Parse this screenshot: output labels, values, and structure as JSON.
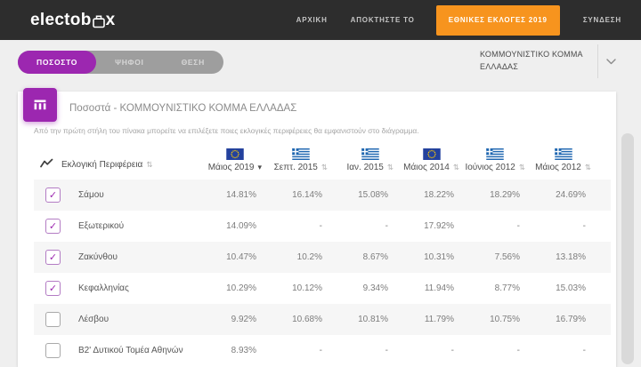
{
  "navbar": {
    "logo_prefix": "electob",
    "logo_suffix": "x",
    "links": [
      "ΑΡΧΙΚΗ",
      "ΑΠΟΚΤΗΣΤΕ ΤΟ"
    ],
    "cta": "ΕΘΝΙΚΕΣ ΕΚΛΟΓΕΣ 2019",
    "login": "ΣΥΝΔΕΣΗ"
  },
  "toolbar": {
    "tabs": [
      {
        "label": "ΠΟΣΟΣΤΟ",
        "active": true
      },
      {
        "label": "ΨΗΦΟΙ",
        "active": false
      },
      {
        "label": "ΘΕΣΗ",
        "active": false
      }
    ],
    "party_select": {
      "value": "ΚΟΜΜΟΥΝΙΣΤΙΚΟ ΚΟΜΜΑ ΕΛΛΑΔΑΣ"
    }
  },
  "card": {
    "title": "Ποσοστά - ΚΟΜΜΟΥΝΙΣΤΙΚΟ ΚΟΜΜΑ ΕΛΛΑΔΑΣ",
    "description": "Από την πρώτη στήλη του πίνακα μπορείτε να επιλέξετε ποιες εκλογικές περιφέρειες θα εμφανιστούν στο διάγραμμα."
  },
  "table": {
    "region_header": "Εκλογική Περιφέρεια",
    "columns": [
      {
        "label": "Μάιος 2019",
        "flag": "eu",
        "sorted": true
      },
      {
        "label": "Σεπτ. 2015",
        "flag": "gr",
        "sorted": false
      },
      {
        "label": "Ιαν. 2015",
        "flag": "gr",
        "sorted": false
      },
      {
        "label": "Μάιος 2014",
        "flag": "eu",
        "sorted": false
      },
      {
        "label": "Ιούνιος 2012",
        "flag": "gr",
        "sorted": false
      },
      {
        "label": "Μάιος 2012",
        "flag": "gr",
        "sorted": false
      }
    ],
    "rows": [
      {
        "region": "Σάμου",
        "checked": true,
        "values": [
          "14.81%",
          "16.14%",
          "15.08%",
          "18.22%",
          "18.29%",
          "24.69%"
        ]
      },
      {
        "region": "Εξωτερικού",
        "checked": true,
        "values": [
          "14.09%",
          "-",
          "-",
          "17.92%",
          "-",
          "-"
        ]
      },
      {
        "region": "Ζακύνθου",
        "checked": true,
        "values": [
          "10.47%",
          "10.2%",
          "8.67%",
          "10.31%",
          "7.56%",
          "13.18%"
        ]
      },
      {
        "region": "Κεφαλληνίας",
        "checked": true,
        "values": [
          "10.29%",
          "10.12%",
          "9.34%",
          "11.94%",
          "8.77%",
          "15.03%"
        ]
      },
      {
        "region": "Λέσβου",
        "checked": false,
        "values": [
          "9.92%",
          "10.68%",
          "10.81%",
          "11.79%",
          "10.75%",
          "16.79%"
        ]
      },
      {
        "region": "Β2' Δυτικού Τομέα Αθηνών",
        "checked": false,
        "values": [
          "8.93%",
          "-",
          "-",
          "-",
          "-",
          "-"
        ]
      }
    ]
  },
  "icons": {
    "sort": "⇅",
    "sorted_desc": "▾",
    "check": "✓"
  },
  "colors": {
    "accent_purple": "#9c27b0",
    "cta_orange": "#f7941e",
    "navbar_bg": "#2d2d2d",
    "flag_blue_greece": "#1e66b0",
    "flag_blue_eu": "#23419d",
    "flag_yellow_eu": "#ffcc00"
  }
}
